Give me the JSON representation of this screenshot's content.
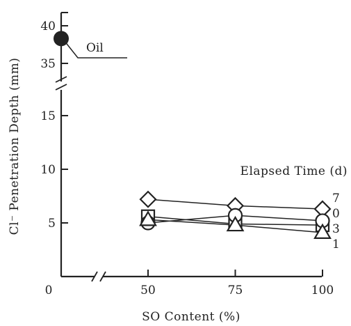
{
  "chart_data": {
    "type": "line",
    "title": "",
    "xlabel": "SO Content (%)",
    "ylabel": "Cl⁻ Penetration Depth (mm)",
    "x_ticks": [
      "0",
      "50",
      "75",
      "100"
    ],
    "y_ticks": [
      "5",
      "10",
      "15",
      "35",
      "40"
    ],
    "axis_breaks": [
      "x",
      "y"
    ],
    "legend_title": "Elapsed Time (d)",
    "x": [
      50,
      75,
      100
    ],
    "series": [
      {
        "name": "7",
        "marker": "diamond",
        "values": [
          7.2,
          6.6,
          6.3
        ]
      },
      {
        "name": "0",
        "marker": "square",
        "values": [
          5.6,
          4.9,
          4.8
        ]
      },
      {
        "name": "3",
        "marker": "circle",
        "values": [
          5.0,
          5.7,
          5.2
        ]
      },
      {
        "name": "1",
        "marker": "triangle",
        "values": [
          5.3,
          4.8,
          4.1
        ]
      }
    ],
    "reference_point": {
      "label": "Oil",
      "x": 0,
      "y": 38.3
    }
  }
}
